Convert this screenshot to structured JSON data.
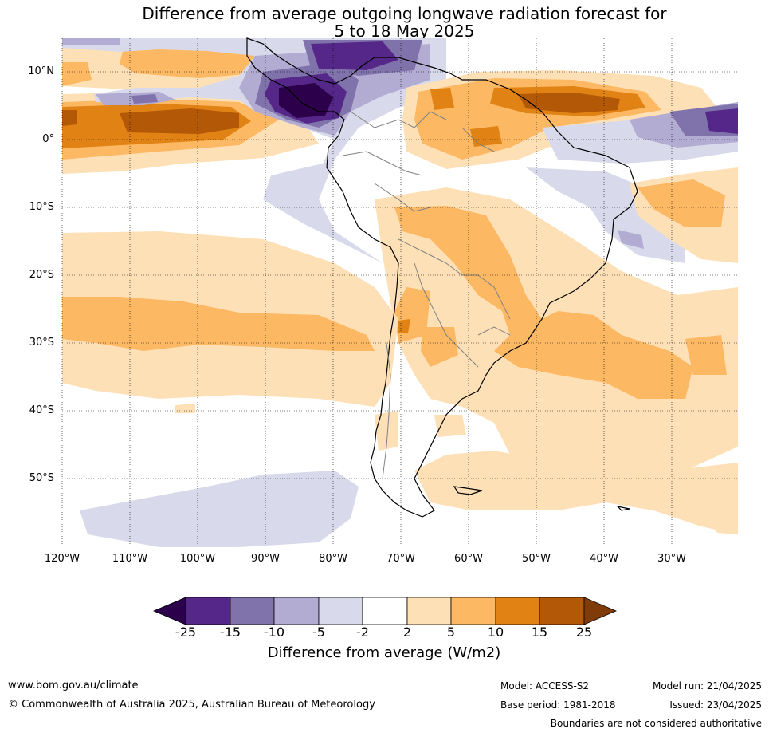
{
  "title": {
    "line1": "Difference from average outgoing longwave radiation forecast for",
    "line2": "5 to 18 May 2025"
  },
  "map": {
    "lat_labels": [
      "10°N",
      "0°",
      "10°S",
      "20°S",
      "30°S",
      "40°S",
      "50°S"
    ],
    "lon_labels": [
      "120°W",
      "110°W",
      "100°W",
      "90°W",
      "80°W",
      "70°W",
      "60°W",
      "50°W",
      "40°W",
      "30°W"
    ],
    "colors": {
      "lt_neg25": "#2d004b",
      "neg25_neg15": "#542788",
      "neg15_neg10": "#8073ac",
      "neg10_neg5": "#b2abd2",
      "neg5_neg2": "#d8daeb",
      "neg2_2": "#ffffff",
      "p2_5": "#fee0b6",
      "p5_10": "#fdb863",
      "p10_15": "#e08214",
      "p15_25": "#b35806",
      "gt25": "#7f3b08"
    }
  },
  "legend": {
    "ticks": [
      "-25",
      "-15",
      "-10",
      "-5",
      "-2",
      "2",
      "5",
      "10",
      "15",
      "25"
    ],
    "title": "Difference from average (W/m2)"
  },
  "footer": {
    "url": "www.bom.gov.au/climate",
    "copyright": "© Commonwealth of Australia 2025, Australian Bureau of Meteorology",
    "model": "Model: ACCESS-S2",
    "base_period": "Base period: 1981-2018",
    "model_run": "Model run: 21/04/2025",
    "issued": "Issued: 23/04/2025",
    "disclaimer": "Boundaries are not considered authoritative"
  }
}
